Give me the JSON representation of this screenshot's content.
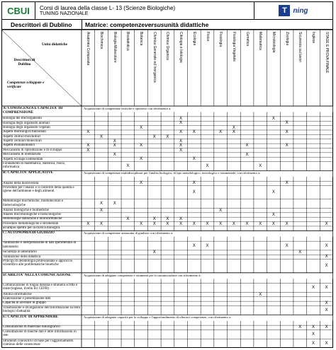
{
  "header": {
    "logo_left": "CBUI",
    "title_line1": "Corsi di laurea della classe L- 13 (Scienze Biologiche)",
    "title_line2": "Tuning Nazionale",
    "logo_right_letter": "T",
    "logo_right_text": "ning"
  },
  "titlebar": {
    "left": "Descrittori di Dublino",
    "right_prefix": "Matrice: competenze ",
    "right_em": "versus",
    "right_suffix": " unità didattiche"
  },
  "corner": {
    "units": "Unità didattiche",
    "descrittori": "Descrittori di Dublino",
    "competenze": "Competenze  sviluppate e verificate"
  },
  "columns": [
    "Anatomia Comparata",
    "Biochimica",
    "Biologia Molecolare",
    "Biostatistica",
    "Botanica",
    "Chimica Generale ed Inorganica",
    "Chimica Organica",
    "Citologia e Istologia",
    "Ecologia",
    "Fisica",
    "Fisiologia",
    "Fisiologia Vegetale",
    "Genetica",
    "Matematica",
    "Microbiologia",
    "Zoologia",
    "Sicurezza sui lavori",
    "Inglese",
    "STAGE E PROVA FINALE"
  ],
  "rows": [
    {
      "type": "sec",
      "label": "A: CONOSCENZA E CAPACITA' DI COMPRENSIONE",
      "text": "Acquisizione di competenze teoriche e operative con riferimento a:"
    },
    {
      "type": "row",
      "label": "Biologia dei microrganismi",
      "x": [
        7,
        14
      ]
    },
    {
      "type": "row",
      "label": "Biologia degli organismi animali",
      "x": [
        7,
        15
      ]
    },
    {
      "type": "row",
      "label": "Biologia degli organismi vegetali",
      "x": [
        4,
        11
      ]
    },
    {
      "type": "row",
      "label": "Aspetti morfologici/funzionali",
      "x": [
        0,
        7,
        8,
        10,
        11,
        15
      ]
    },
    {
      "type": "row",
      "label": "Aspetti chimici/biochimici",
      "x": [
        1,
        5,
        6
      ]
    },
    {
      "type": "row",
      "label": "Aspetti cellulari/molecolari",
      "x": [
        2,
        7
      ]
    },
    {
      "type": "row",
      "label": "Aspetti evoluzionistici",
      "x": [
        0,
        2,
        4,
        7,
        12,
        15
      ]
    },
    {
      "type": "row",
      "label": "Meccanismi di riproduzione e di sviluppo",
      "x": [
        0,
        7
      ]
    },
    {
      "type": "row",
      "label": "Meccanismi di ereditarietà",
      "x": [
        2,
        12
      ]
    },
    {
      "type": "row",
      "label": "Aspetti ecologici/ambientali",
      "x": [
        4,
        8
      ]
    },
    {
      "type": "row2",
      "label": "Fondamenti di matematica, statistica, fisica, informatica",
      "x": [
        3,
        9,
        13
      ]
    },
    {
      "type": "sec",
      "label": "B: CAPACITA' APPLICATIVE",
      "text": "Acquisizione di competenze multidisciplinari per l'analisi biologica, di tipo metodologico, tecnologico e strumentale, con riferimento a:"
    },
    {
      "type": "row",
      "label": "Analisi della biodiversità",
      "x": [
        4,
        8,
        15
      ]
    },
    {
      "type": "row3",
      "label": "Procedure per l'analisi e il controllo della qualità e igiene dell'ambiente e degli alimenti",
      "x": [
        8,
        14
      ]
    },
    {
      "type": "row2",
      "label": "Metodologie biochimiche, biomolecolari e biotecnologiche",
      "x": [
        1,
        2
      ]
    },
    {
      "type": "row",
      "label": "Analisi biologiche e biomediche",
      "x": [
        1,
        10
      ]
    },
    {
      "type": "row",
      "label": "Analisi microbiologiche e tossicologiche",
      "x": [
        14
      ]
    },
    {
      "type": "row",
      "label": "Metodologie statistiche e bioinformatiche",
      "x": [
        3,
        5,
        6,
        7
      ]
    },
    {
      "type": "row",
      "label": "Procedure metodologiche e strumentali",
      "x": [
        0,
        1,
        4,
        5,
        6,
        7,
        8,
        9,
        10,
        11,
        12,
        13,
        14,
        15,
        18
      ]
    },
    {
      "type": "row",
      "label": "ad ampio spettro per la ricerca biologica",
      "x": []
    },
    {
      "type": "sec",
      "label": "C: AUTONOMIA DI GIUDIZIO",
      "text": "Acquisizione di competenze autonoma di giudizio con riferimento a:"
    },
    {
      "type": "row2",
      "label": "Valutazione e interpretazione di dati sperimentali di laboratorio",
      "x": [
        8,
        9,
        15,
        18
      ]
    },
    {
      "type": "row",
      "label": "Sicurezza in laboratorio",
      "x": [
        5,
        16
      ]
    },
    {
      "type": "row",
      "label": "Valutazione della didattica",
      "x": [
        18
      ]
    },
    {
      "type": "row3",
      "label": "Principi di deontologia professionale e approccio scientifico alle problematiche bioetiche",
      "x": [
        18
      ]
    },
    {
      "type": "sec",
      "label": "D: ABILITA' NELLA COMUNICAZIONE",
      "text": "Acquisizione di adeguate competenze e strumenti per la comunicazione con riferimento a:"
    },
    {
      "type": "row2",
      "label": "Comunicazione in lingua italiana e straniera scritta e orale (inglese, livello B1 CEFR)",
      "x": [
        17,
        18
      ]
    },
    {
      "type": "row",
      "label": "Abilità informatiche",
      "x": [
        13
      ]
    },
    {
      "type": "row",
      "label": "Elaborazione e presentazione dati",
      "x": []
    },
    {
      "type": "row",
      "label": "Capacità di lavorare in gruppo",
      "x": [
        18
      ]
    },
    {
      "type": "row2",
      "label": "Trasmissione e divulgazione dell'informazione su temi biologici d'attualità",
      "x": [
        18
      ]
    },
    {
      "type": "sec",
      "label": "E: CAPACITA' DI APPRENDERE",
      "text": "Acquisizione di adeguate capacità per lo sviluppo e l'approfondimento di ulteriori competenze, con riferimento a:"
    },
    {
      "type": "row",
      "label": "Consultazione di materiale bibliografico",
      "x": [
        16,
        17,
        18
      ]
    },
    {
      "type": "row2",
      "label": "Consultazione di banche dati e altre informazioni in rete",
      "x": [
        17
      ]
    },
    {
      "type": "row2",
      "label": "Strumenti conoscitivi di base per l'aggiornamento continuo delle conoscenze",
      "x": [
        17,
        18
      ]
    }
  ],
  "x_mark": "X"
}
